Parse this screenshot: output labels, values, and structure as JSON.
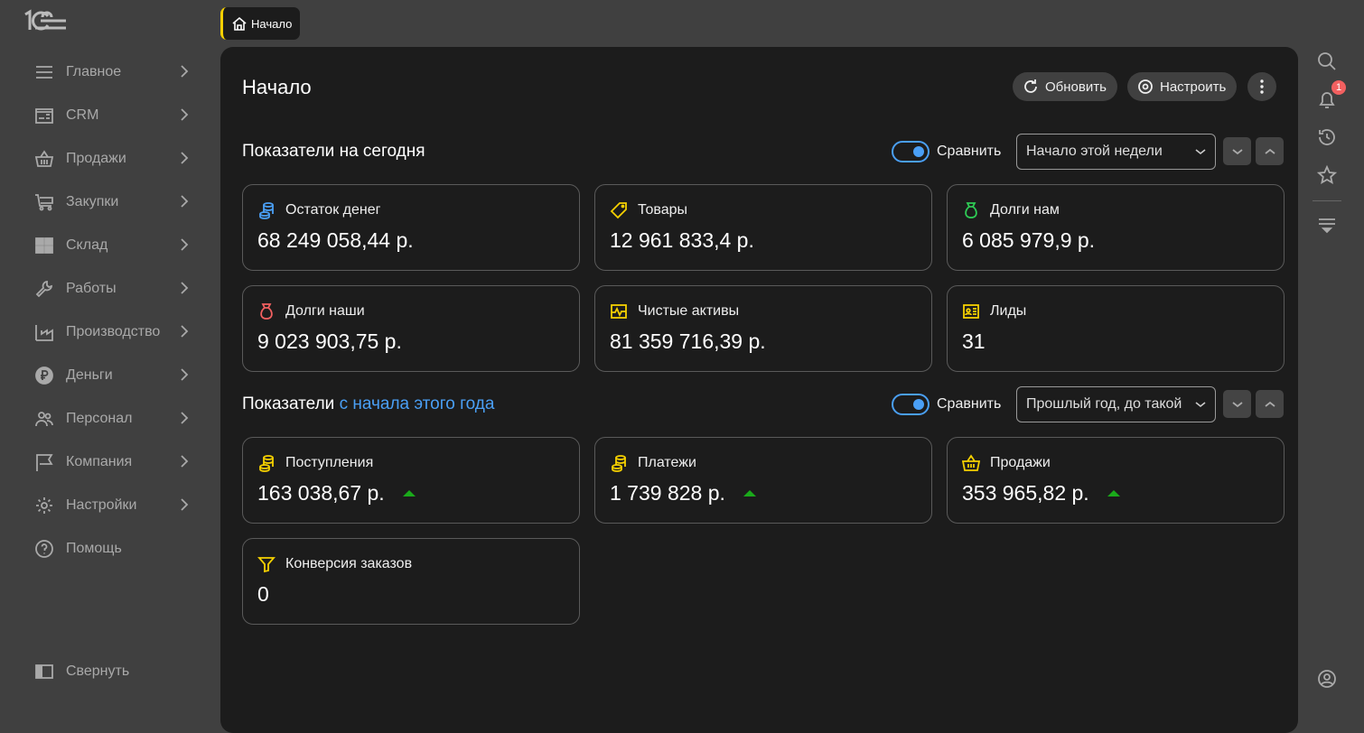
{
  "sidebar": {
    "items": [
      {
        "label": "Главное",
        "icon": "menu-icon"
      },
      {
        "label": "CRM",
        "icon": "contact-card-icon"
      },
      {
        "label": "Продажи",
        "icon": "basket-icon"
      },
      {
        "label": "Закупки",
        "icon": "cart-icon"
      },
      {
        "label": "Склад",
        "icon": "grid-icon"
      },
      {
        "label": "Работы",
        "icon": "wrench-icon"
      },
      {
        "label": "Производство",
        "icon": "factory-icon"
      },
      {
        "label": "Деньги",
        "icon": "ruble-icon"
      },
      {
        "label": "Персонал",
        "icon": "people-icon"
      },
      {
        "label": "Компания",
        "icon": "flag-icon"
      },
      {
        "label": "Настройки",
        "icon": "gear-icon"
      },
      {
        "label": "Помощь",
        "icon": "help-icon"
      }
    ],
    "collapse": "Свернуть"
  },
  "tab": {
    "label": "Начало"
  },
  "page": {
    "title": "Начало",
    "refresh": "Обновить",
    "configure": "Настроить"
  },
  "today": {
    "title": "Показатели на сегодня",
    "compare": "Сравнить",
    "compare_on": true,
    "period": "Начало этой недели",
    "cards": [
      {
        "label": "Остаток денег",
        "value": "68 249 058,44 р.",
        "color": "#4a9ff5"
      },
      {
        "label": "Товары",
        "value": "12 961 833,4 р.",
        "color": "#f5d000"
      },
      {
        "label": "Долги нам",
        "value": "6 085 979,9 р.",
        "color": "#2ecc55"
      },
      {
        "label": "Долги наши",
        "value": "9 023 903,75 р.",
        "color": "#f26060"
      },
      {
        "label": "Чистые активы",
        "value": "81 359 716,39 р.",
        "color": "#f5d000"
      },
      {
        "label": "Лиды",
        "value": "31",
        "color": "#f5d000"
      }
    ]
  },
  "year": {
    "title_prefix": "Показатели",
    "title_link": "с начала этого года",
    "compare": "Сравнить",
    "compare_on": true,
    "period": "Прошлый год, до такой",
    "cards": [
      {
        "label": "Поступления",
        "value": "163 038,67 р.",
        "trend": "up"
      },
      {
        "label": "Платежи",
        "value": "1 739 828 р.",
        "trend": "up"
      },
      {
        "label": "Продажи",
        "value": "353 965,82 р.",
        "trend": "up"
      },
      {
        "label": "Конверсия заказов",
        "value": "0"
      }
    ]
  },
  "rail": {
    "notifications": "1"
  },
  "colors": {
    "accent": "#4a9ff5",
    "trend_up": "#1aaa1a",
    "tab_marker": "#f5d000"
  }
}
